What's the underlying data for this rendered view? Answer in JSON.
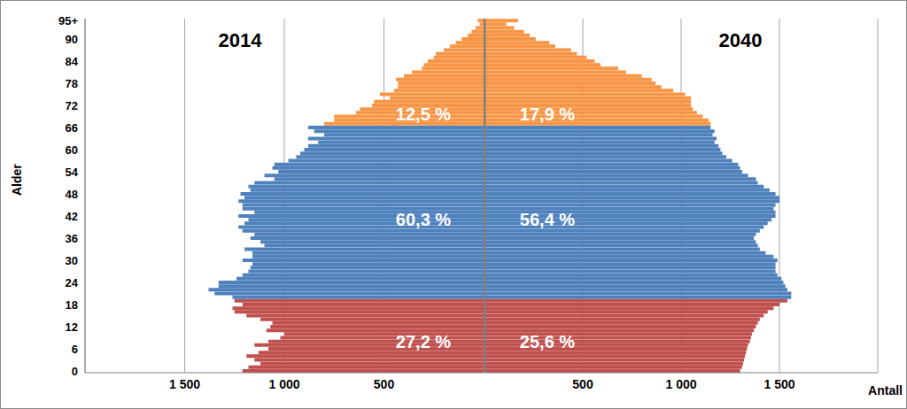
{
  "chart_data": [
    {
      "type": "bar",
      "title": "2014",
      "orientation": "horizontal",
      "y_label": "Alder",
      "grid": true,
      "categories": [
        "0",
        null,
        null,
        null,
        null,
        null,
        "6",
        null,
        null,
        null,
        null,
        null,
        "12",
        null,
        null,
        null,
        null,
        null,
        "18",
        null,
        null,
        null,
        null,
        null,
        "24",
        null,
        null,
        null,
        null,
        null,
        "30",
        null,
        null,
        null,
        null,
        null,
        "36",
        null,
        null,
        null,
        null,
        null,
        "42",
        null,
        null,
        null,
        null,
        null,
        "48",
        null,
        null,
        null,
        null,
        null,
        "54",
        null,
        null,
        null,
        null,
        null,
        "60",
        null,
        null,
        null,
        null,
        null,
        "66",
        null,
        null,
        null,
        null,
        null,
        "72",
        null,
        null,
        null,
        null,
        null,
        "78",
        null,
        null,
        null,
        null,
        null,
        "84",
        null,
        null,
        null,
        null,
        null,
        "90",
        null,
        null,
        null,
        null,
        "95+"
      ],
      "values": [
        1210,
        1180,
        1120,
        1150,
        1190,
        1130,
        1080,
        1150,
        1080,
        1020,
        1000,
        1090,
        1070,
        1060,
        1120,
        1190,
        1250,
        1260,
        1210,
        1250,
        1260,
        1350,
        1380,
        1330,
        1330,
        1240,
        1210,
        1180,
        1170,
        1160,
        1210,
        1160,
        1160,
        1200,
        1100,
        1120,
        1170,
        1150,
        1210,
        1230,
        1200,
        1180,
        1230,
        1150,
        1210,
        1210,
        1230,
        1200,
        1220,
        1170,
        1180,
        1150,
        1050,
        1100,
        1030,
        1060,
        1050,
        980,
        940,
        920,
        900,
        880,
        830,
        880,
        800,
        850,
        880,
        800,
        750,
        750,
        640,
        620,
        560,
        550,
        470,
        520,
        450,
        430,
        430,
        440,
        400,
        360,
        310,
        300,
        280,
        250,
        240,
        200,
        170,
        140,
        110,
        80,
        60,
        40,
        20,
        30
      ],
      "colors": [
        "#c0504d",
        "#c0504d",
        "#c0504d",
        "#c0504d",
        "#c0504d",
        "#c0504d",
        "#c0504d",
        "#c0504d",
        "#c0504d",
        "#c0504d",
        "#c0504d",
        "#c0504d",
        "#c0504d",
        "#c0504d",
        "#c0504d",
        "#c0504d",
        "#c0504d",
        "#c0504d",
        "#c0504d",
        "#c0504d",
        "#4f81bd",
        "#4f81bd",
        "#4f81bd",
        "#4f81bd",
        "#4f81bd",
        "#4f81bd",
        "#4f81bd",
        "#4f81bd",
        "#4f81bd",
        "#4f81bd",
        "#4f81bd",
        "#4f81bd",
        "#4f81bd",
        "#4f81bd",
        "#4f81bd",
        "#4f81bd",
        "#4f81bd",
        "#4f81bd",
        "#4f81bd",
        "#4f81bd",
        "#4f81bd",
        "#4f81bd",
        "#4f81bd",
        "#4f81bd",
        "#4f81bd",
        "#4f81bd",
        "#4f81bd",
        "#4f81bd",
        "#4f81bd",
        "#4f81bd",
        "#4f81bd",
        "#4f81bd",
        "#4f81bd",
        "#4f81bd",
        "#4f81bd",
        "#4f81bd",
        "#4f81bd",
        "#4f81bd",
        "#4f81bd",
        "#4f81bd",
        "#4f81bd",
        "#4f81bd",
        "#4f81bd",
        "#4f81bd",
        "#4f81bd",
        "#4f81bd",
        "#4f81bd",
        "#f79646",
        "#f79646",
        "#f79646",
        "#f79646",
        "#f79646",
        "#f79646",
        "#f79646",
        "#f79646",
        "#f79646",
        "#f79646",
        "#f79646",
        "#f79646",
        "#f79646",
        "#f79646",
        "#f79646",
        "#f79646",
        "#f79646",
        "#f79646",
        "#f79646",
        "#f79646",
        "#f79646",
        "#f79646",
        "#f79646",
        "#f79646",
        "#f79646",
        "#f79646",
        "#f79646",
        "#f79646",
        "#f79646"
      ],
      "annotations": [
        "27,2 %",
        "60,3 %",
        "12,5 %"
      ],
      "xlim": [
        2000,
        0
      ],
      "xticks": [
        {
          "value": 1500,
          "label": "1 500"
        },
        {
          "value": 1000,
          "label": "1 000"
        },
        500
      ]
    },
    {
      "type": "bar",
      "title": "2040",
      "orientation": "horizontal",
      "x_label": "Antall",
      "grid": true,
      "tick_labels": "x",
      "categories": [
        "0",
        null,
        null,
        null,
        null,
        null,
        "6",
        null,
        null,
        null,
        null,
        null,
        "12",
        null,
        null,
        null,
        null,
        null,
        "18",
        null,
        null,
        null,
        null,
        null,
        "24",
        null,
        null,
        null,
        null,
        null,
        "30",
        null,
        null,
        null,
        null,
        null,
        "36",
        null,
        null,
        null,
        null,
        null,
        "42",
        null,
        null,
        null,
        null,
        null,
        "48",
        null,
        null,
        null,
        null,
        null,
        "54",
        null,
        null,
        null,
        null,
        null,
        "60",
        null,
        null,
        null,
        null,
        null,
        "66",
        null,
        null,
        null,
        null,
        null,
        "72",
        null,
        null,
        null,
        null,
        null,
        "78",
        null,
        null,
        null,
        null,
        null,
        "84",
        null,
        null,
        null,
        null,
        null,
        "90",
        null,
        null,
        null,
        null,
        "95+"
      ],
      "values": [
        1300,
        1310,
        1315,
        1320,
        1325,
        1330,
        1335,
        1340,
        1350,
        1355,
        1360,
        1370,
        1380,
        1390,
        1400,
        1420,
        1440,
        1470,
        1500,
        1540,
        1560,
        1560,
        1540,
        1530,
        1520,
        1510,
        1490,
        1480,
        1480,
        1480,
        1490,
        1470,
        1430,
        1400,
        1390,
        1380,
        1370,
        1380,
        1400,
        1420,
        1440,
        1460,
        1480,
        1480,
        1470,
        1480,
        1500,
        1500,
        1480,
        1450,
        1420,
        1390,
        1380,
        1340,
        1310,
        1300,
        1290,
        1260,
        1230,
        1210,
        1200,
        1190,
        1170,
        1180,
        1160,
        1170,
        1150,
        1150,
        1140,
        1110,
        1080,
        1060,
        1050,
        1050,
        1050,
        1020,
        960,
        900,
        870,
        850,
        800,
        720,
        680,
        590,
        560,
        520,
        470,
        440,
        360,
        330,
        260,
        230,
        200,
        150,
        110,
        170
      ],
      "colors": [
        "#c0504d",
        "#c0504d",
        "#c0504d",
        "#c0504d",
        "#c0504d",
        "#c0504d",
        "#c0504d",
        "#c0504d",
        "#c0504d",
        "#c0504d",
        "#c0504d",
        "#c0504d",
        "#c0504d",
        "#c0504d",
        "#c0504d",
        "#c0504d",
        "#c0504d",
        "#c0504d",
        "#c0504d",
        "#c0504d",
        "#4f81bd",
        "#4f81bd",
        "#4f81bd",
        "#4f81bd",
        "#4f81bd",
        "#4f81bd",
        "#4f81bd",
        "#4f81bd",
        "#4f81bd",
        "#4f81bd",
        "#4f81bd",
        "#4f81bd",
        "#4f81bd",
        "#4f81bd",
        "#4f81bd",
        "#4f81bd",
        "#4f81bd",
        "#4f81bd",
        "#4f81bd",
        "#4f81bd",
        "#4f81bd",
        "#4f81bd",
        "#4f81bd",
        "#4f81bd",
        "#4f81bd",
        "#4f81bd",
        "#4f81bd",
        "#4f81bd",
        "#4f81bd",
        "#4f81bd",
        "#4f81bd",
        "#4f81bd",
        "#4f81bd",
        "#4f81bd",
        "#4f81bd",
        "#4f81bd",
        "#4f81bd",
        "#4f81bd",
        "#4f81bd",
        "#4f81bd",
        "#4f81bd",
        "#4f81bd",
        "#4f81bd",
        "#4f81bd",
        "#4f81bd",
        "#4f81bd",
        "#4f81bd",
        "#f79646",
        "#f79646",
        "#f79646",
        "#f79646",
        "#f79646",
        "#f79646",
        "#f79646",
        "#f79646",
        "#f79646",
        "#f79646",
        "#f79646",
        "#f79646",
        "#f79646",
        "#f79646",
        "#f79646",
        "#f79646",
        "#f79646",
        "#f79646",
        "#f79646",
        "#f79646",
        "#f79646",
        "#f79646",
        "#f79646",
        "#f79646",
        "#f79646",
        "#f79646",
        "#f79646",
        "#f79646",
        "#f79646"
      ],
      "annotations": [
        "25,6 %",
        "56,4 %",
        "17,9 %"
      ],
      "xlim": [
        0,
        2000
      ],
      "xticks": [
        500,
        {
          "value": 1000,
          "label": "1 000"
        },
        {
          "value": 1500,
          "label": "1 500"
        }
      ]
    }
  ]
}
